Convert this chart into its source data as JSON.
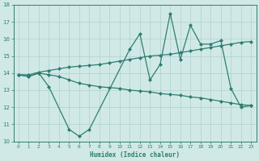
{
  "x": [
    0,
    1,
    2,
    3,
    4,
    5,
    6,
    7,
    8,
    9,
    10,
    11,
    12,
    13,
    14,
    15,
    16,
    17,
    18,
    19,
    20,
    21,
    22,
    23
  ],
  "line1": [
    13.9,
    13.8,
    14.0,
    13.2,
    null,
    10.7,
    10.3,
    10.7,
    null,
    null,
    null,
    15.4,
    16.3,
    13.6,
    14.5,
    17.5,
    14.8,
    16.8,
    15.7,
    15.7,
    15.9,
    13.1,
    12.0,
    12.1
  ],
  "line2": [
    13.9,
    13.9,
    14.05,
    14.15,
    14.25,
    14.35,
    14.4,
    14.45,
    14.5,
    14.6,
    14.7,
    14.8,
    14.9,
    15.0,
    15.05,
    15.1,
    15.2,
    15.3,
    15.4,
    15.5,
    15.6,
    15.7,
    15.8,
    15.85
  ],
  "line3": [
    13.9,
    13.8,
    14.0,
    13.9,
    13.8,
    13.6,
    13.4,
    13.3,
    13.2,
    13.15,
    13.1,
    13.0,
    12.95,
    12.9,
    12.8,
    12.75,
    12.7,
    12.6,
    12.55,
    12.45,
    12.35,
    12.25,
    12.15,
    12.1
  ],
  "color": "#2e7d72",
  "bg_color": "#d0e9e7",
  "grid_color": "#b0d0ce",
  "xlabel": "Humidex (Indice chaleur)",
  "xlim": [
    -0.5,
    23.5
  ],
  "ylim": [
    10,
    18
  ],
  "yticks": [
    10,
    11,
    12,
    13,
    14,
    15,
    16,
    17,
    18
  ],
  "xticks": [
    0,
    1,
    2,
    3,
    4,
    5,
    6,
    7,
    8,
    9,
    10,
    11,
    12,
    13,
    14,
    15,
    16,
    17,
    18,
    19,
    20,
    21,
    22,
    23
  ],
  "marker": "D",
  "markersize": 2.0,
  "linewidth": 0.9
}
